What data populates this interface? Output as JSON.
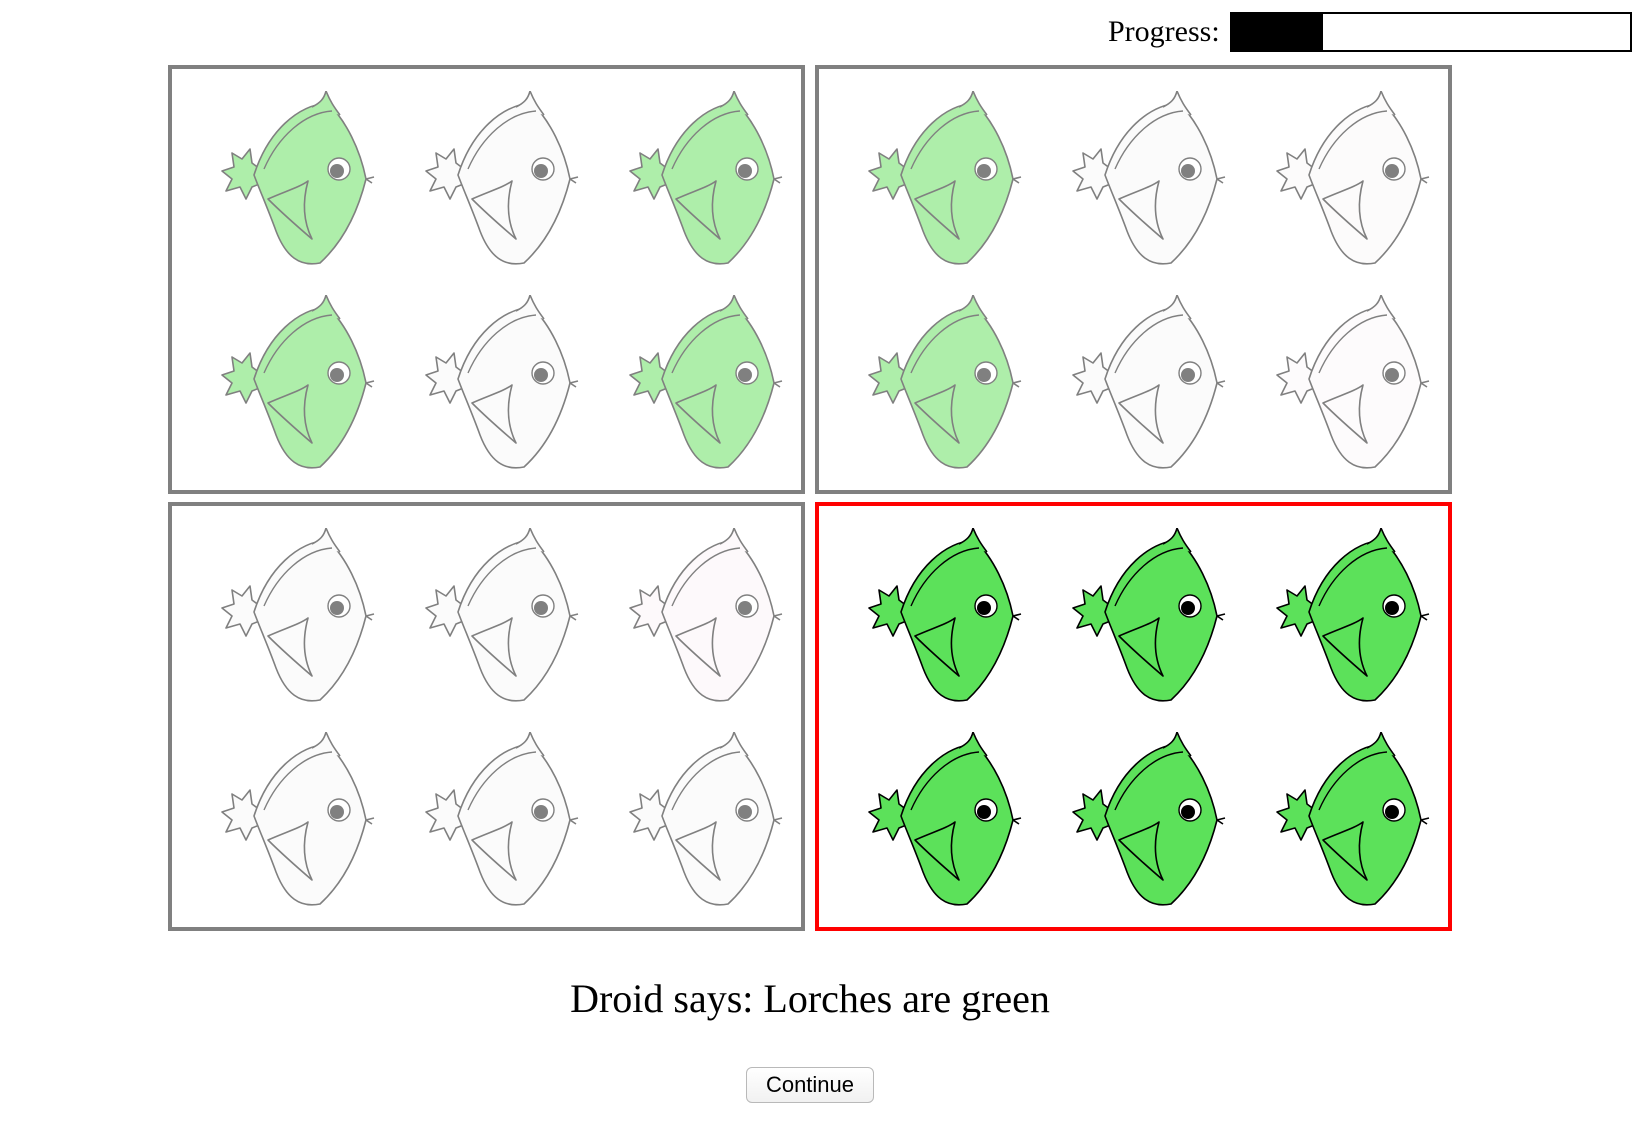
{
  "progress": {
    "label": "Progress:",
    "fraction": 0.23
  },
  "panels": [
    {
      "id": "panel-top-left",
      "selected": false,
      "fish": [
        {
          "body": "#aeeeaa",
          "stroke": "#808080",
          "eye": "#808080"
        },
        {
          "body": "#fbfbfb",
          "stroke": "#808080",
          "eye": "#808080"
        },
        {
          "body": "#aeeeaa",
          "stroke": "#808080",
          "eye": "#808080"
        },
        {
          "body": "#aeeeaa",
          "stroke": "#808080",
          "eye": "#808080"
        },
        {
          "body": "#fbfbfb",
          "stroke": "#808080",
          "eye": "#808080"
        },
        {
          "body": "#aeeeaa",
          "stroke": "#808080",
          "eye": "#808080"
        }
      ]
    },
    {
      "id": "panel-top-right",
      "selected": false,
      "fish": [
        {
          "body": "#aeeeaa",
          "stroke": "#808080",
          "eye": "#808080"
        },
        {
          "body": "#fbfbfb",
          "stroke": "#808080",
          "eye": "#808080"
        },
        {
          "body": "#fcfbfb",
          "stroke": "#808080",
          "eye": "#808080"
        },
        {
          "body": "#aeeeaa",
          "stroke": "#808080",
          "eye": "#808080"
        },
        {
          "body": "#fbfbfb",
          "stroke": "#808080",
          "eye": "#808080"
        },
        {
          "body": "#fdfbfc",
          "stroke": "#808080",
          "eye": "#808080"
        }
      ]
    },
    {
      "id": "panel-bottom-left",
      "selected": false,
      "fish": [
        {
          "body": "#fbfbfb",
          "stroke": "#808080",
          "eye": "#808080"
        },
        {
          "body": "#fbfbfb",
          "stroke": "#808080",
          "eye": "#808080"
        },
        {
          "body": "#fdf9fb",
          "stroke": "#808080",
          "eye": "#808080"
        },
        {
          "body": "#fbfbfb",
          "stroke": "#808080",
          "eye": "#808080"
        },
        {
          "body": "#fbfbfb",
          "stroke": "#808080",
          "eye": "#808080"
        },
        {
          "body": "#fbfbfb",
          "stroke": "#808080",
          "eye": "#808080"
        }
      ]
    },
    {
      "id": "panel-bottom-right",
      "selected": true,
      "fish": [
        {
          "body": "#5ce15a",
          "stroke": "#000000",
          "eye": "#000000"
        },
        {
          "body": "#5ce15a",
          "stroke": "#000000",
          "eye": "#000000"
        },
        {
          "body": "#5ce15a",
          "stroke": "#000000",
          "eye": "#000000"
        },
        {
          "body": "#5ce15a",
          "stroke": "#000000",
          "eye": "#000000"
        },
        {
          "body": "#5ce15a",
          "stroke": "#000000",
          "eye": "#000000"
        },
        {
          "body": "#5ce15a",
          "stroke": "#000000",
          "eye": "#000000"
        }
      ]
    }
  ],
  "message": "Droid says: Lorches are green",
  "continue_label": "Continue",
  "colors": {
    "selected_border": "#ff0000",
    "panel_border": "#808080"
  }
}
